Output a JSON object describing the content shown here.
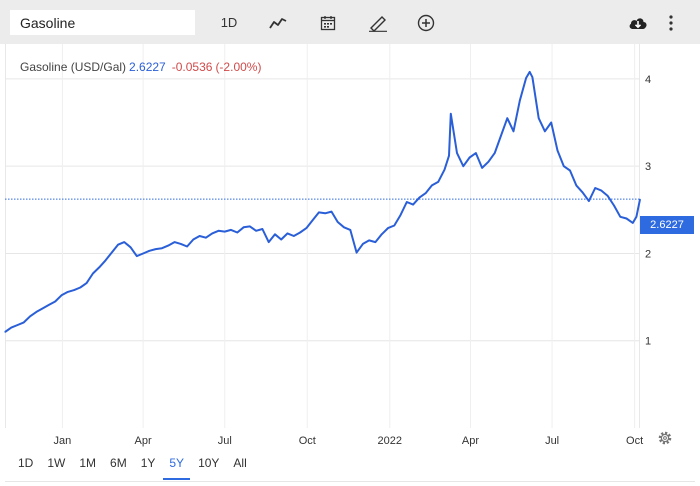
{
  "toolbar": {
    "symbol": "Gasoline",
    "interval_label": "1D",
    "icons": [
      "line-chart-icon",
      "calendar-icon",
      "draw-pencil-icon",
      "add-compare-icon",
      "download-cloud-icon",
      "more-vertical-icon"
    ]
  },
  "legend": {
    "name": "Gasoline (USD/Gal)",
    "last": "2.6227",
    "change": "-0.0536",
    "change_pct": "(-2.00%)"
  },
  "price_tag": "2.6227",
  "ranges": [
    "1D",
    "1W",
    "1M",
    "6M",
    "1Y",
    "5Y",
    "10Y",
    "All"
  ],
  "active_range": "5Y",
  "colors": {
    "line": "#2a5fd8",
    "negative": "#d04a4a",
    "tag": "#2f6be0",
    "grid": "#e6e6e6"
  },
  "chart_data": {
    "type": "line",
    "title": "",
    "xlabel": "",
    "ylabel": "",
    "y_ticks": [
      "1",
      "2",
      "3",
      "4"
    ],
    "x_ticks": [
      {
        "label": "Jan",
        "date": "2021-01-01"
      },
      {
        "label": "Apr",
        "date": "2021-04-01"
      },
      {
        "label": "Jul",
        "date": "2021-07-01"
      },
      {
        "label": "Oct",
        "date": "2021-10-01"
      },
      {
        "label": "2022",
        "date": "2022-01-01"
      },
      {
        "label": "Apr",
        "date": "2022-04-01"
      },
      {
        "label": "Jul",
        "date": "2022-07-01"
      },
      {
        "label": "Oct",
        "date": "2022-10-01"
      }
    ],
    "ylim": [
      0,
      4.4
    ],
    "xlim": [
      "2020-10-29",
      "2022-10-07"
    ],
    "grid": true,
    "last_price": 2.6227,
    "series": [
      {
        "x": [
          "2020-10-29",
          "2020-11-05",
          "2020-11-12",
          "2020-11-19",
          "2020-11-26",
          "2020-12-03",
          "2020-12-10",
          "2020-12-17",
          "2020-12-24",
          "2020-12-31",
          "2021-01-07",
          "2021-01-14",
          "2021-01-21",
          "2021-01-28",
          "2021-02-04",
          "2021-02-11",
          "2021-02-18",
          "2021-02-25",
          "2021-03-04",
          "2021-03-11",
          "2021-03-18",
          "2021-03-25",
          "2021-04-01",
          "2021-04-08",
          "2021-04-15",
          "2021-04-22",
          "2021-04-29",
          "2021-05-06",
          "2021-05-13",
          "2021-05-20",
          "2021-05-27",
          "2021-06-03",
          "2021-06-10",
          "2021-06-17",
          "2021-06-24",
          "2021-07-01",
          "2021-07-08",
          "2021-07-15",
          "2021-07-22",
          "2021-07-29",
          "2021-08-05",
          "2021-08-12",
          "2021-08-19",
          "2021-08-26",
          "2021-09-02",
          "2021-09-09",
          "2021-09-16",
          "2021-09-23",
          "2021-09-30",
          "2021-10-07",
          "2021-10-14",
          "2021-10-21",
          "2021-10-28",
          "2021-11-04",
          "2021-11-11",
          "2021-11-18",
          "2021-11-25",
          "2021-12-02",
          "2021-12-09",
          "2021-12-16",
          "2021-12-23",
          "2021-12-30",
          "2022-01-06",
          "2022-01-13",
          "2022-01-20",
          "2022-01-27",
          "2022-02-03",
          "2022-02-10",
          "2022-02-17",
          "2022-02-24",
          "2022-03-03",
          "2022-03-08",
          "2022-03-10",
          "2022-03-17",
          "2022-03-24",
          "2022-03-31",
          "2022-04-07",
          "2022-04-14",
          "2022-04-21",
          "2022-04-28",
          "2022-05-05",
          "2022-05-12",
          "2022-05-19",
          "2022-05-26",
          "2022-06-02",
          "2022-06-06",
          "2022-06-09",
          "2022-06-16",
          "2022-06-23",
          "2022-06-30",
          "2022-07-07",
          "2022-07-14",
          "2022-07-21",
          "2022-07-28",
          "2022-08-04",
          "2022-08-11",
          "2022-08-18",
          "2022-08-25",
          "2022-09-01",
          "2022-09-08",
          "2022-09-15",
          "2022-09-22",
          "2022-09-29",
          "2022-10-03",
          "2022-10-07"
        ],
        "values": [
          1.1,
          1.15,
          1.18,
          1.21,
          1.28,
          1.33,
          1.37,
          1.41,
          1.45,
          1.52,
          1.56,
          1.58,
          1.61,
          1.66,
          1.77,
          1.84,
          1.92,
          2.01,
          2.1,
          2.13,
          2.07,
          1.97,
          2.0,
          2.03,
          2.05,
          2.06,
          2.09,
          2.13,
          2.11,
          2.08,
          2.16,
          2.2,
          2.18,
          2.23,
          2.26,
          2.25,
          2.27,
          2.24,
          2.3,
          2.31,
          2.26,
          2.28,
          2.13,
          2.22,
          2.16,
          2.23,
          2.2,
          2.24,
          2.29,
          2.38,
          2.47,
          2.46,
          2.48,
          2.36,
          2.3,
          2.27,
          2.01,
          2.11,
          2.15,
          2.13,
          2.22,
          2.29,
          2.32,
          2.44,
          2.59,
          2.56,
          2.64,
          2.69,
          2.78,
          2.82,
          2.96,
          3.12,
          3.6,
          3.15,
          3.0,
          3.1,
          3.15,
          2.98,
          3.05,
          3.15,
          3.35,
          3.55,
          3.4,
          3.75,
          4.01,
          4.08,
          4.02,
          3.55,
          3.4,
          3.5,
          3.18,
          3.0,
          2.95,
          2.78,
          2.7,
          2.6,
          2.75,
          2.72,
          2.66,
          2.55,
          2.42,
          2.4,
          2.35,
          2.42,
          2.62
        ]
      }
    ]
  }
}
